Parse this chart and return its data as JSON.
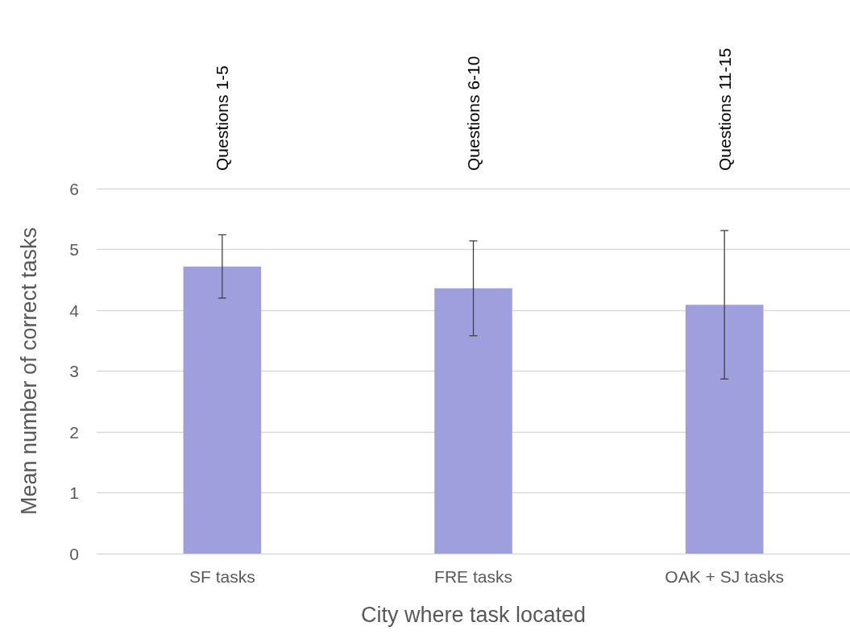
{
  "chart_data": {
    "type": "bar",
    "xlabel": "City where task located",
    "ylabel": "Mean number of correct tasks",
    "categories": [
      "SF tasks",
      "FRE tasks",
      "OAK + SJ tasks"
    ],
    "values": [
      4.72,
      4.36,
      4.09
    ],
    "color": "#9f9fde",
    "errors": [
      0.52,
      0.78,
      1.22
    ],
    "ylim": [
      0,
      6
    ],
    "yticks": [
      0,
      1,
      2,
      3,
      4,
      5,
      6
    ],
    "grid": "y",
    "annotations": [
      "Questions 1-5",
      "Questions 6-10",
      "Questions 11-15"
    ]
  }
}
